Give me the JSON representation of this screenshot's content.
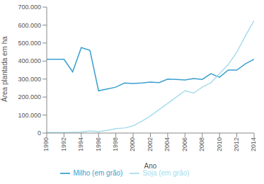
{
  "chart_data": {
    "type": "line",
    "x_label": "Ano",
    "y_label": "Área plantada em ha",
    "x": [
      1990,
      1991,
      1992,
      1993,
      1994,
      1995,
      1996,
      1997,
      1998,
      1999,
      2000,
      2001,
      2002,
      2003,
      2004,
      2005,
      2006,
      2007,
      2008,
      2009,
      2010,
      2011,
      2012,
      2013,
      2014
    ],
    "series": [
      {
        "name": "Milho (em grão)",
        "color": "#3a9fd0",
        "values": [
          410000,
          410000,
          410000,
          340000,
          475000,
          460000,
          235000,
          245000,
          255000,
          278000,
          275000,
          278000,
          283000,
          280000,
          300000,
          298000,
          295000,
          303000,
          298000,
          330000,
          310000,
          350000,
          350000,
          385000,
          410000
        ]
      },
      {
        "name": "Soja (em grão)",
        "color": "#a8dcec",
        "values": [
          3000,
          3000,
          3000,
          4000,
          6000,
          12000,
          8000,
          15000,
          25000,
          28000,
          40000,
          65000,
          95000,
          130000,
          165000,
          200000,
          235000,
          222000,
          255000,
          280000,
          330000,
          380000,
          450000,
          540000,
          625000
        ]
      }
    ],
    "xlim": [
      1990,
      2014
    ],
    "xticks": [
      1990,
      1992,
      1994,
      1996,
      1998,
      2000,
      2002,
      2004,
      2006,
      2008,
      2010,
      2012,
      2014
    ],
    "ylim": [
      0,
      700000
    ],
    "yticks": [
      0,
      {
        "value": 100000,
        "label": "100.000"
      },
      {
        "value": 200000,
        "label": "200.000"
      },
      {
        "value": 300000,
        "label": "300.000"
      },
      {
        "value": 400000,
        "label": "400.000"
      },
      {
        "value": 500000,
        "label": "500.000"
      },
      {
        "value": 600000,
        "label": "600.000"
      },
      {
        "value": 700000,
        "label": "700.000"
      }
    ],
    "grid": false,
    "legend": "bottom"
  }
}
